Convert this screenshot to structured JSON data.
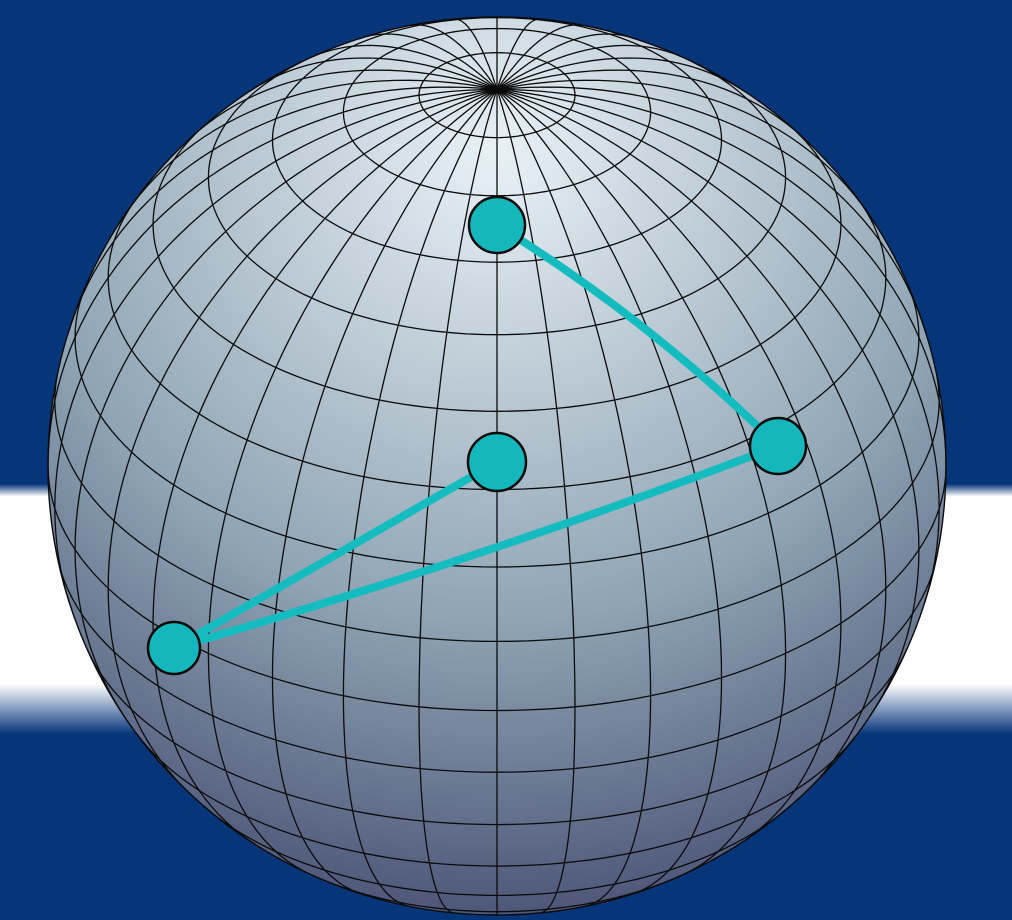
{
  "colors": {
    "background": "#07357a",
    "band": "#ffffff",
    "sphere_light": "#e9f1f6",
    "sphere_mid": "#8fa4b4",
    "sphere_dark": "#3a3f66",
    "grid_line": "#0b0b0b",
    "marker_fill": "#14b8bc",
    "edge": "#14bcc0"
  },
  "sphere": {
    "meridians": 36,
    "parallel_step_deg": 10,
    "pole": "north"
  },
  "markers": [
    {
      "id": "A",
      "label": ""
    },
    {
      "id": "B",
      "label": ""
    },
    {
      "id": "C",
      "label": ""
    },
    {
      "id": "D",
      "label": ""
    }
  ],
  "edges": [
    [
      "A",
      "B"
    ],
    [
      "B",
      "D"
    ],
    [
      "D",
      "C"
    ]
  ]
}
